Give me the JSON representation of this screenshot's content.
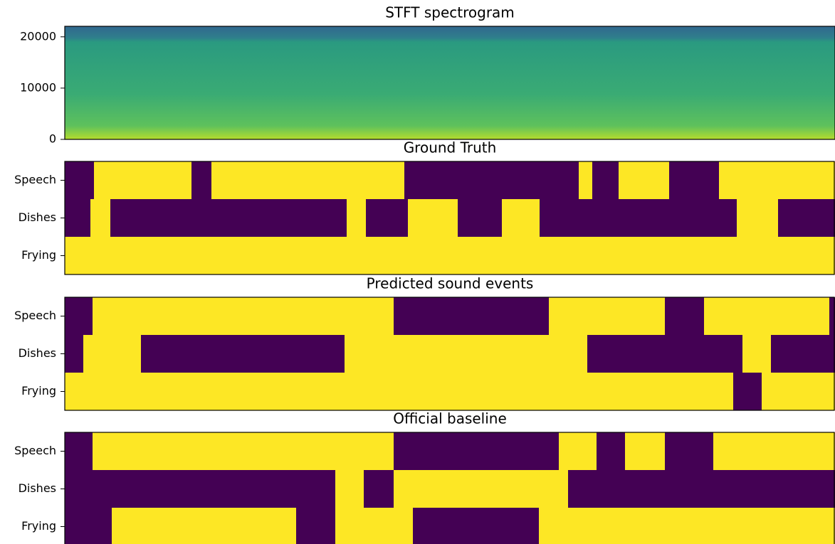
{
  "chart_data": [
    {
      "type": "spectrogram",
      "title": "STFT spectrogram",
      "ylim": [
        0,
        22050
      ],
      "yticks": [
        0,
        10000,
        20000
      ]
    },
    {
      "type": "event_roll",
      "title": "Ground Truth",
      "xlim": [
        0,
        1082
      ],
      "categories": [
        "Speech",
        "Dishes",
        "Frying"
      ],
      "active_color": "#fde725",
      "inactive_color": "#440154",
      "segments": [
        [
          [
            41,
            178
          ],
          [
            206,
            477
          ],
          [
            722,
            741
          ],
          [
            778,
            849
          ],
          [
            919,
            1082
          ]
        ],
        [
          [
            36,
            64
          ],
          [
            396,
            423
          ],
          [
            482,
            552
          ],
          [
            614,
            667
          ],
          [
            944,
            1002
          ]
        ],
        [
          [
            0,
            1082
          ]
        ]
      ]
    },
    {
      "type": "event_roll",
      "title": "Predicted sound events",
      "xlim": [
        0,
        1082
      ],
      "categories": [
        "Speech",
        "Dishes",
        "Frying"
      ],
      "active_color": "#fde725",
      "inactive_color": "#440154",
      "segments": [
        [
          [
            39,
            462
          ],
          [
            680,
            843
          ],
          [
            898,
            1074
          ]
        ],
        [
          [
            26,
            107
          ],
          [
            393,
            734
          ],
          [
            952,
            992
          ]
        ],
        [
          [
            0,
            939
          ],
          [
            979,
            1082
          ]
        ]
      ]
    },
    {
      "type": "event_roll",
      "title": "Official baseline",
      "xlim": [
        0,
        1082
      ],
      "categories": [
        "Speech",
        "Dishes",
        "Frying"
      ],
      "active_color": "#fde725",
      "inactive_color": "#440154",
      "segments": [
        [
          [
            39,
            462
          ],
          [
            694,
            747
          ],
          [
            787,
            843
          ],
          [
            911,
            1082
          ]
        ],
        [
          [
            380,
            420
          ],
          [
            462,
            707
          ]
        ],
        [
          [
            66,
            325
          ],
          [
            380,
            489
          ],
          [
            666,
            1082
          ]
        ]
      ]
    }
  ]
}
